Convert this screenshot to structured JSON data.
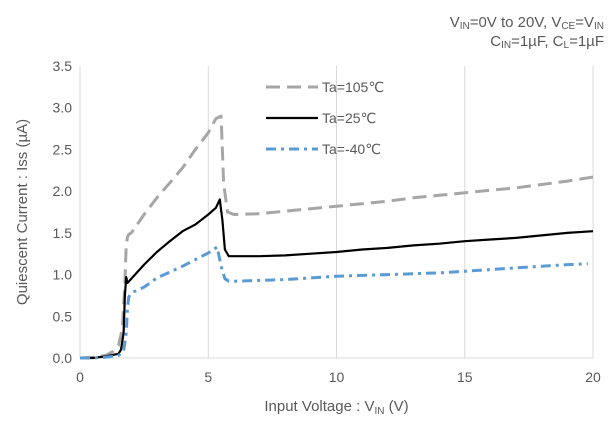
{
  "conditions": {
    "line1": {
      "vin_label": "V",
      "vin_sub": "IN",
      "vin_range": "=0V to 20V, ",
      "vce_label": "V",
      "vce_sub": "CE",
      "vce_eq": "=V",
      "vce_eq_sub": "IN"
    },
    "line2": {
      "cin_label": "C",
      "cin_sub": "IN",
      "cin_val": "=1µF, ",
      "cl_label": "C",
      "cl_sub": "L",
      "cl_val": "=1µF"
    }
  },
  "chart_data": {
    "type": "line",
    "xlabel": "Input Voltage : V",
    "xlabel_sub": "IN",
    "xlabel_unit": " (V)",
    "ylabel": "Quiescent Current : Iss (µA)",
    "xlim": [
      0,
      20
    ],
    "ylim": [
      0,
      3.5
    ],
    "x_ticks": [
      0,
      5,
      10,
      15,
      20
    ],
    "y_ticks": [
      0.0,
      0.5,
      1.0,
      1.5,
      2.0,
      2.5,
      3.0,
      3.5
    ],
    "y_tick_labels": [
      "0.0",
      "0.5",
      "1.0",
      "1.5",
      "2.0",
      "2.5",
      "3.0",
      "3.5"
    ],
    "grid": "vertical",
    "legend_position": "top-center",
    "colors": {
      "axis": "#d9d9d9",
      "grid": "#d9d9d9",
      "text": "#595959"
    },
    "series": [
      {
        "name": "Ta=105℃",
        "color": "#a6a6a6",
        "dash": "dashed",
        "x": [
          0,
          0.5,
          1.0,
          1.3,
          1.5,
          1.65,
          1.75,
          1.8,
          1.85,
          1.9,
          2.0,
          2.5,
          3.0,
          3.5,
          4.0,
          4.5,
          5.0,
          5.3,
          5.5,
          5.6,
          5.75,
          6.0,
          7.0,
          8.0,
          9.0,
          10.0,
          11.0,
          12.0,
          13.0,
          14.0,
          15.0,
          16.0,
          17.0,
          18.0,
          19.0,
          20.0
        ],
        "y": [
          0,
          0.01,
          0.03,
          0.08,
          0.15,
          0.35,
          0.9,
          1.35,
          1.45,
          1.48,
          1.5,
          1.72,
          1.92,
          2.1,
          2.28,
          2.5,
          2.7,
          2.87,
          2.9,
          2.1,
          1.75,
          1.72,
          1.73,
          1.76,
          1.79,
          1.82,
          1.85,
          1.88,
          1.92,
          1.95,
          1.98,
          2.01,
          2.04,
          2.08,
          2.12,
          2.17
        ]
      },
      {
        "name": "Ta=25℃",
        "color": "#000000",
        "dash": "solid",
        "x": [
          0,
          0.5,
          1.0,
          1.5,
          1.6,
          1.7,
          1.75,
          1.8,
          1.85,
          2.0,
          2.5,
          3.0,
          3.5,
          4.0,
          4.5,
          5.0,
          5.3,
          5.45,
          5.55,
          5.65,
          5.8,
          6.0,
          7.0,
          8.0,
          9.0,
          10.0,
          11.0,
          12.0,
          13.0,
          14.0,
          15.0,
          16.0,
          17.0,
          18.0,
          19.0,
          20.0
        ],
        "y": [
          0,
          0.0,
          0.02,
          0.05,
          0.1,
          0.3,
          0.75,
          0.97,
          0.9,
          0.95,
          1.12,
          1.27,
          1.4,
          1.52,
          1.6,
          1.72,
          1.8,
          1.9,
          1.65,
          1.3,
          1.22,
          1.22,
          1.22,
          1.23,
          1.25,
          1.27,
          1.3,
          1.32,
          1.35,
          1.37,
          1.4,
          1.42,
          1.44,
          1.47,
          1.5,
          1.52
        ]
      },
      {
        "name": "Ta=-40℃",
        "color": "#5b9bd5",
        "dash": "dashdot",
        "x": [
          0,
          0.5,
          1.0,
          1.5,
          1.7,
          1.8,
          1.85,
          1.9,
          2.0,
          2.5,
          3.0,
          3.5,
          4.0,
          4.5,
          5.0,
          5.2,
          5.35,
          5.5,
          5.65,
          5.8,
          6.0,
          7.0,
          8.0,
          9.0,
          10.0,
          11.0,
          12.0,
          13.0,
          14.0,
          15.0,
          16.0,
          17.0,
          18.0,
          19.0,
          19.8
        ],
        "y": [
          0,
          0.0,
          0.01,
          0.03,
          0.08,
          0.3,
          0.6,
          0.73,
          0.78,
          0.85,
          0.96,
          1.03,
          1.1,
          1.18,
          1.26,
          1.3,
          1.33,
          1.1,
          0.95,
          0.92,
          0.92,
          0.93,
          0.94,
          0.96,
          0.98,
          0.99,
          1.0,
          1.01,
          1.02,
          1.04,
          1.06,
          1.08,
          1.1,
          1.12,
          1.13
        ]
      }
    ]
  }
}
